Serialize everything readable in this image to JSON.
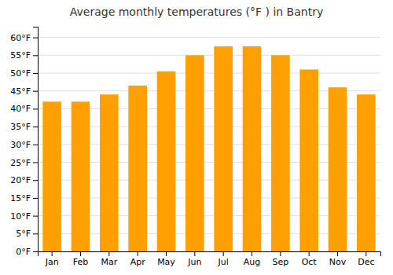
{
  "chart_data": {
    "type": "bar",
    "title": "Average monthly temperatures (°F ) in Bantry",
    "categories": [
      "Jan",
      "Feb",
      "Mar",
      "Apr",
      "May",
      "Jun",
      "Jul",
      "Aug",
      "Sep",
      "Oct",
      "Nov",
      "Dec"
    ],
    "values": [
      42,
      42,
      44,
      46.5,
      50.5,
      55,
      57.5,
      57.5,
      55,
      51,
      46,
      44
    ],
    "color": "#FFA000",
    "ylim": [
      0,
      63
    ],
    "yticks": [
      {
        "value": 0,
        "label": "0°F"
      },
      {
        "value": 5,
        "label": "5°F"
      },
      {
        "value": 10,
        "label": "10°F"
      },
      {
        "value": 15,
        "label": "15°F"
      },
      {
        "value": 20,
        "label": "20°F"
      },
      {
        "value": 25,
        "label": "25°F"
      },
      {
        "value": 30,
        "label": "30°F"
      },
      {
        "value": 35,
        "label": "35°F"
      },
      {
        "value": 40,
        "label": "40°F"
      },
      {
        "value": 45,
        "label": "45°F"
      },
      {
        "value": 50,
        "label": "50°F"
      },
      {
        "value": 55,
        "label": "55°F"
      },
      {
        "value": 60,
        "label": "60°F"
      }
    ],
    "grid": true
  }
}
